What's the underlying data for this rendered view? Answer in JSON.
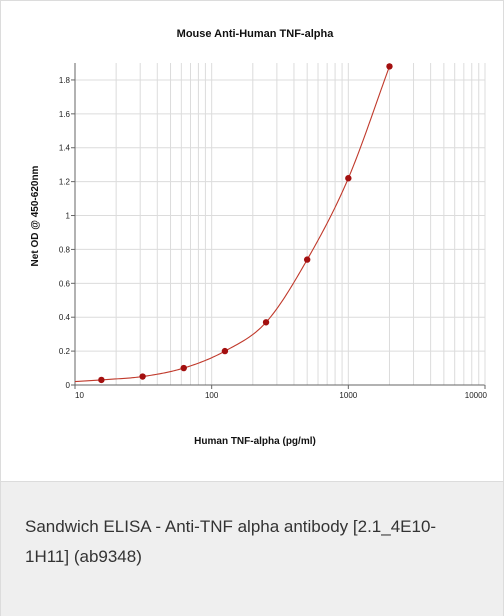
{
  "caption": {
    "text": "Sandwich ELISA - Anti-TNF alpha antibody [2.1_4E10-1H11] (ab9348)"
  },
  "colors": {
    "curve": "#c0392b",
    "point": "#a30f0f",
    "grid": "#dcdcdc",
    "axis": "#666666",
    "caption_bg": "#efefef"
  },
  "chart_data": {
    "type": "scatter",
    "title": "Mouse Anti-Human TNF-alpha",
    "xlabel": "Human TNF-alpha (pg/ml)",
    "ylabel": "Net OD @ 450-620nm",
    "xscale": "log",
    "xlim": [
      10,
      10000
    ],
    "ylim": [
      0,
      1.9
    ],
    "grid": true,
    "x_ticks": [
      10,
      100,
      1000,
      10000
    ],
    "x_tick_labels": [
      "10",
      "100",
      "1000",
      "10000"
    ],
    "y_ticks": [
      0,
      0.2,
      0.4,
      0.6,
      0.8,
      1,
      1.2,
      1.4,
      1.6,
      1.8
    ],
    "y_tick_labels": [
      "0",
      "0.2",
      "0.4",
      "0.6",
      "0.8",
      "1",
      "1.2",
      "1.4",
      "1.6",
      "1.8"
    ],
    "series": [
      {
        "x": [
          15.6,
          31.25,
          62.5,
          125,
          250,
          500,
          1000,
          2000
        ],
        "y": [
          0.03,
          0.05,
          0.1,
          0.2,
          0.37,
          0.74,
          1.22,
          1.88
        ]
      }
    ],
    "fit_curve": true
  }
}
